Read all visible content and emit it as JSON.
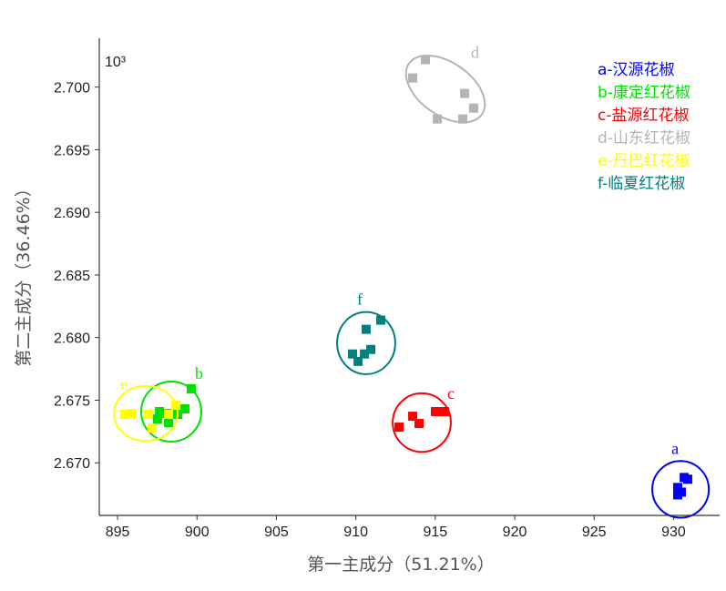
{
  "chart_data": {
    "type": "scatter",
    "xlabel": "第一主成分（51.21%）",
    "ylabel": "第二主成分（36.46%）",
    "y_multiplier_label": "10³",
    "xlim": [
      893.85,
      932.9
    ],
    "ylim": [
      2.6658,
      2.7039
    ],
    "xticks": [
      895,
      900,
      905,
      910,
      915,
      920,
      925,
      930
    ],
    "xtick_labels": [
      "895",
      "900",
      "905",
      "910",
      "915",
      "920",
      "925",
      "930"
    ],
    "yticks": [
      2.67,
      2.675,
      2.68,
      2.685,
      2.69,
      2.695,
      2.7
    ],
    "ytick_labels": [
      "2.670",
      "2.675",
      "2.680",
      "2.685",
      "2.690",
      "2.695",
      "2.700"
    ],
    "grid": false,
    "legend_placement": "top-right",
    "marker": "square",
    "series": [
      {
        "label": "a",
        "name": "a-汉源花椒",
        "color": "#0000ff",
        "x": [
          930.26,
          930.26,
          930.67,
          930.89,
          930.49
        ],
        "y": [
          2.66744,
          2.66803,
          2.66883,
          2.66869,
          2.66766
        ],
        "ellipse": {
          "cx": 930.44,
          "cy": 2.66788,
          "rx": 1.78,
          "ry": 0.00226,
          "rotation_deg": 0
        }
      },
      {
        "label": "b",
        "name": "b-康定红花椒",
        "color": "#00e000",
        "x": [
          899.64,
          899.24,
          897.64,
          897.52,
          898.1,
          898.21,
          898.78
        ],
        "y": [
          2.67591,
          2.67431,
          2.67409,
          2.6735,
          2.67394,
          2.67321,
          2.67387
        ],
        "ellipse": {
          "cx": 898.38,
          "cy": 2.67409,
          "rx": 1.89,
          "ry": 0.0024,
          "rotation_deg": 0
        }
      },
      {
        "label": "c",
        "name": "c-盐源红花椒",
        "color": "#ff0000",
        "x": [
          912.72,
          913.58,
          913.98,
          915.01,
          915.58
        ],
        "y": [
          2.67285,
          2.67372,
          2.67314,
          2.67409,
          2.67409
        ],
        "ellipse": {
          "cx": 914.15,
          "cy": 2.67321,
          "rx": 1.83,
          "ry": 0.00234,
          "rotation_deg": 0
        }
      },
      {
        "label": "d",
        "name": "d-山东红花椒",
        "color": "#b4b4b4",
        "x": [
          914.38,
          913.58,
          916.85,
          917.42,
          916.73,
          915.13
        ],
        "y": [
          2.70219,
          2.70073,
          2.69949,
          2.69832,
          2.69745,
          2.69745
        ],
        "ellipse": {
          "cx": 915.64,
          "cy": 2.69985,
          "rx": 2.8,
          "ry": 0.0021,
          "rotation_deg": 35
        }
      },
      {
        "label": "e",
        "name": "e-丹巴红花椒",
        "color": "#ffff00",
        "x": [
          895.46,
          895.92,
          896.95,
          897.18,
          898.67,
          898.21
        ],
        "y": [
          2.67387,
          2.67394,
          2.67387,
          2.67277,
          2.6746,
          2.67387
        ],
        "ellipse": {
          "cx": 896.78,
          "cy": 2.67394,
          "rx": 2.0,
          "ry": 0.00219,
          "rotation_deg": 0
        }
      },
      {
        "label": "f",
        "name": "f-临夏红花椒",
        "color": "#008080",
        "x": [
          911.57,
          910.65,
          909.79,
          910.94,
          910.14,
          910.54
        ],
        "y": [
          2.68139,
          2.68066,
          2.67869,
          2.67905,
          2.6781,
          2.67869
        ],
        "ellipse": {
          "cx": 910.65,
          "cy": 2.67956,
          "rx": 1.83,
          "ry": 0.00248,
          "rotation_deg": 0
        }
      }
    ]
  }
}
